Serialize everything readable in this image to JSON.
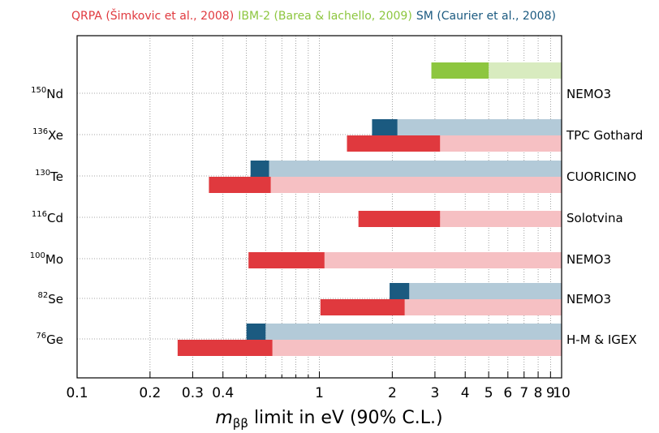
{
  "legend": [
    {
      "label": "QRPA (Šimkovic et al., 2008)",
      "color": "#e0393e"
    },
    {
      "label": "IBM-2 (Barea & Iachello, 2009)",
      "color": "#8dc63f"
    },
    {
      "label": "SM (Caurier et al., 2008)",
      "color": "#1b5a80"
    }
  ],
  "chart_data": {
    "type": "bar",
    "orientation": "horizontal",
    "xscale": "log",
    "xlim": [
      0.1,
      10
    ],
    "xticks": [
      0.1,
      0.2,
      0.3,
      0.4,
      1,
      2,
      3,
      4,
      5,
      6,
      7,
      8,
      9,
      10
    ],
    "xtick_labels": [
      "0.1",
      "0.2",
      "0.3",
      "0.4",
      "1",
      "2",
      "3",
      "4",
      "5",
      "6",
      "7",
      "8",
      "9",
      "10"
    ],
    "xlabel": {
      "italic": "m",
      "sub": "ββ",
      "rest": " limit in eV (90% C.L.)"
    },
    "grid": true,
    "rows": [
      {
        "mass": "150",
        "element": "Nd",
        "experiment": "NEMO3",
        "bars": [
          {
            "model": "IBM-2",
            "min": 2.9,
            "max": 5.0
          }
        ]
      },
      {
        "mass": "136",
        "element": "Xe",
        "experiment": "TPC Gothard",
        "bars": [
          {
            "model": "SM",
            "min": 1.65,
            "max": 2.1
          },
          {
            "model": "QRPA",
            "min": 1.3,
            "max": 3.15
          }
        ]
      },
      {
        "mass": "130",
        "element": "Te",
        "experiment": "CUORICINO",
        "bars": [
          {
            "model": "SM",
            "min": 0.52,
            "max": 0.62
          },
          {
            "model": "QRPA",
            "min": 0.35,
            "max": 0.63
          }
        ]
      },
      {
        "mass": "116",
        "element": "Cd",
        "experiment": "Solotvina",
        "bars": [
          {
            "model": "QRPA",
            "min": 1.45,
            "max": 3.15
          }
        ]
      },
      {
        "mass": "100",
        "element": "Mo",
        "experiment": "NEMO3",
        "bars": [
          {
            "model": "QRPA",
            "min": 0.51,
            "max": 1.05
          }
        ]
      },
      {
        "mass": "82",
        "element": "Se",
        "experiment": "NEMO3",
        "bars": [
          {
            "model": "SM",
            "min": 1.95,
            "max": 2.35
          },
          {
            "model": "QRPA",
            "min": 1.01,
            "max": 2.25
          }
        ]
      },
      {
        "mass": "76",
        "element": "Ge",
        "experiment": "H-M & IGEX",
        "bars": [
          {
            "model": "SM",
            "min": 0.5,
            "max": 0.6
          },
          {
            "model": "QRPA",
            "min": 0.26,
            "max": 0.64
          }
        ]
      }
    ]
  },
  "colors": {
    "QRPA": {
      "dark": "#e0393e",
      "light": "#f6c0c3"
    },
    "IBM-2": {
      "dark": "#8dc63f",
      "light": "#d8ebbf"
    },
    "SM": {
      "dark": "#1b5a80",
      "light": "#b3cad8"
    }
  }
}
